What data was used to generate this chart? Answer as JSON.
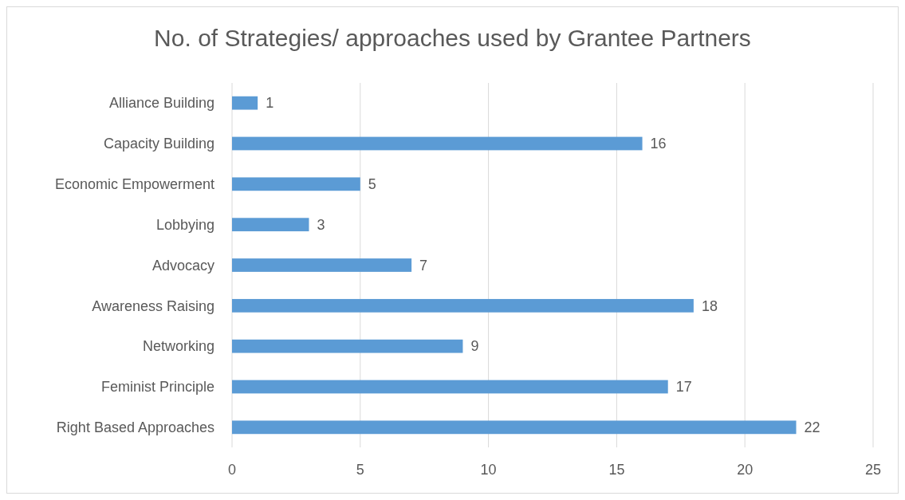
{
  "chart_data": {
    "type": "bar",
    "orientation": "horizontal",
    "title": "No. of Strategies/ approaches used by Grantee Partners",
    "categories": [
      "Alliance Building",
      "Capacity Building",
      "Economic Empowerment",
      "Lobbying",
      "Advocacy",
      "Awareness Raising",
      "Networking",
      "Feminist Principle",
      "Right Based Approaches"
    ],
    "values": [
      1,
      16,
      5,
      3,
      7,
      18,
      9,
      17,
      22
    ],
    "color": "#5b9bd5",
    "xlim": [
      0,
      25
    ],
    "xticks": [
      0,
      5,
      10,
      15,
      20,
      25
    ],
    "grid": "x",
    "data_labels": true
  }
}
